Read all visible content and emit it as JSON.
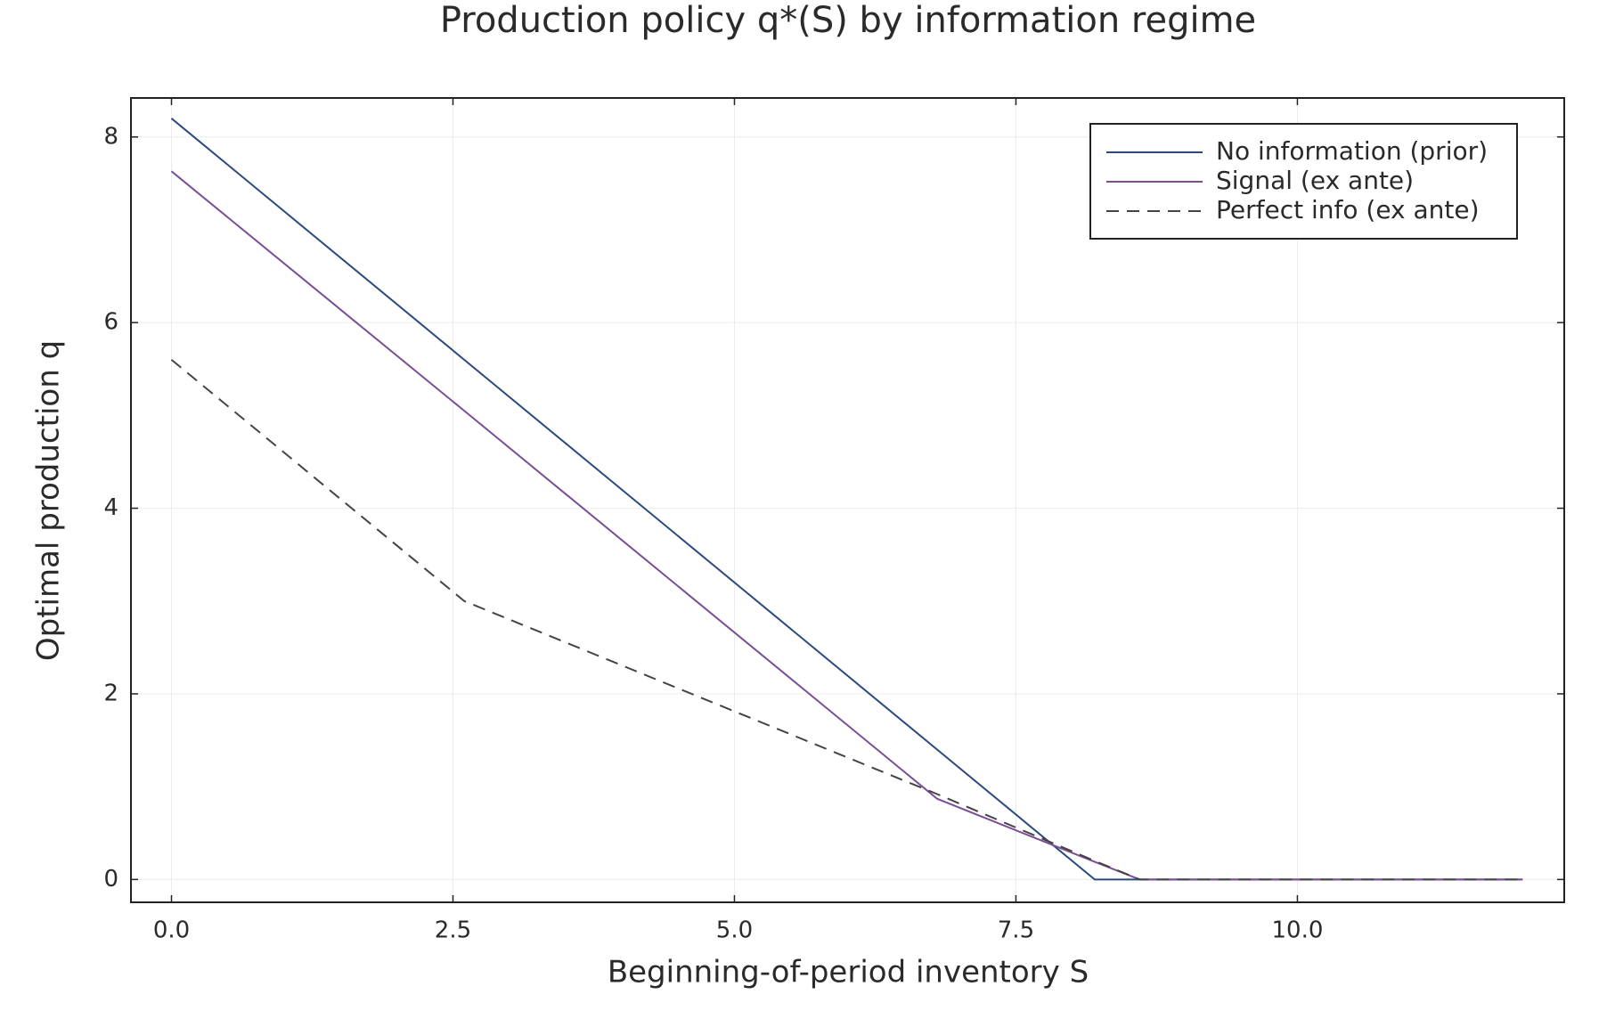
{
  "chart_data": {
    "type": "line",
    "title": "Production policy q*(S) by information regime",
    "x_label": "Beginning-of-period inventory  S",
    "y_label": "Optimal production  q",
    "x": [
      0,
      2.6,
      6.8,
      8.2,
      8.6,
      12
    ],
    "series": [
      {
        "name": "No information (prior)",
        "color": "#2b4a7e",
        "dash": "solid",
        "values": [
          8.2,
          5.6,
          1.4,
          0,
          0,
          0
        ]
      },
      {
        "name": "Signal (ex ante)",
        "color": "#7b4e94",
        "dash": "solid",
        "values": [
          7.63,
          5.05,
          0.87,
          0.19,
          0,
          0
        ]
      },
      {
        "name": "Perfect info (ex ante)",
        "color": "#444444",
        "dash": "dashed",
        "values": [
          5.6,
          3.0,
          0.92,
          0.2,
          0,
          0
        ]
      }
    ],
    "xlim": [
      -0.36,
      12.37
    ],
    "ylim": [
      -0.246,
      8.42
    ],
    "xticks": [
      {
        "value": 0,
        "label": "0.0"
      },
      2.5,
      {
        "value": 5,
        "label": "5.0"
      },
      7.5,
      {
        "value": 10,
        "label": "10.0"
      }
    ],
    "yticks": [
      0,
      2,
      4,
      6,
      8
    ],
    "grid": true,
    "legend": "top-right"
  }
}
